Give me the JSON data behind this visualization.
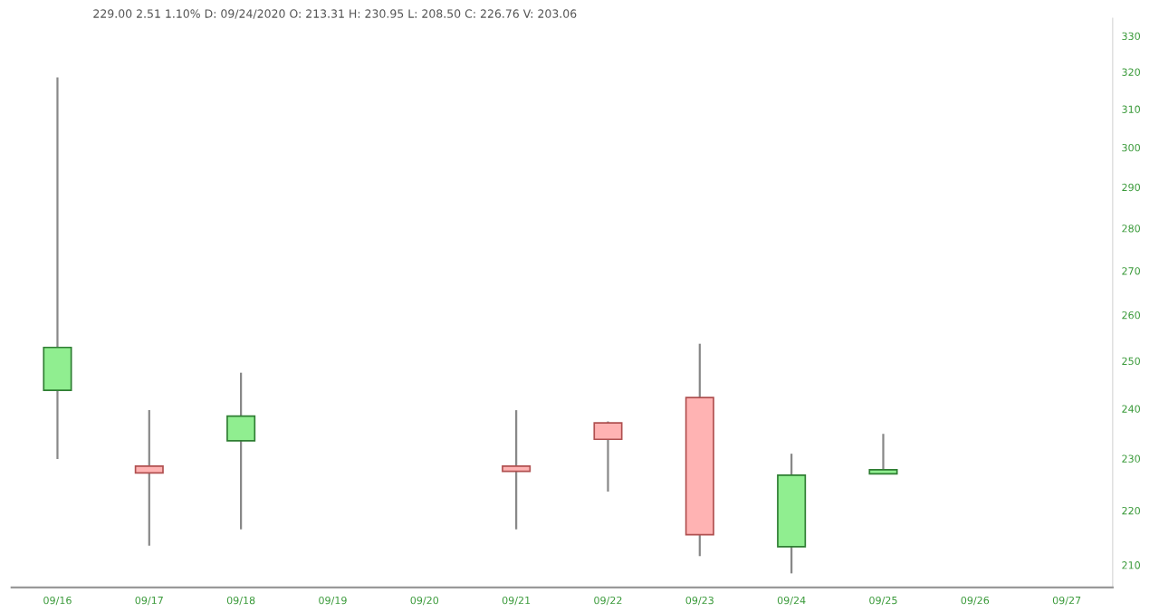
{
  "chart_data": {
    "type": "candlestick",
    "title": "229.00 2.51 1.10% D: 09/24/2020 O: 213.31 H: 230.95 L: 208.50 C: 226.76 V: 203.06",
    "categories": [
      "09/16",
      "09/17",
      "09/18",
      "09/19",
      "09/20",
      "09/21",
      "09/22",
      "09/23",
      "09/24",
      "09/25",
      "09/26",
      "09/27"
    ],
    "ohlc": [
      [
        243.8,
        318.5,
        229.9,
        252.9
      ],
      [
        228.5,
        239.7,
        213.5,
        227.2
      ],
      [
        233.5,
        247.5,
        216.5,
        238.5
      ],
      null,
      null,
      [
        228.5,
        239.7,
        216.5,
        227.5
      ],
      [
        237.1,
        237.4,
        223.6,
        233.8
      ],
      [
        242.3,
        253.7,
        211.6,
        215.5
      ],
      [
        213.31,
        230.95,
        208.5,
        226.76
      ],
      [
        227.0,
        234.9,
        227.0,
        227.8
      ],
      null,
      null
    ],
    "colors": [
      "#90ee90",
      "#ffb3b3",
      "#90ee90",
      null,
      null,
      "#ffb3b3",
      "#ffb3b3",
      "#ffb3b3",
      "#90ee90",
      "#90ee90",
      null,
      null
    ],
    "log": "y",
    "ylim": [
      206,
      335
    ],
    "yticks": [
      210,
      220,
      230,
      240,
      250,
      260,
      270,
      280,
      290,
      300,
      310,
      320,
      330
    ],
    "grid": false
  }
}
